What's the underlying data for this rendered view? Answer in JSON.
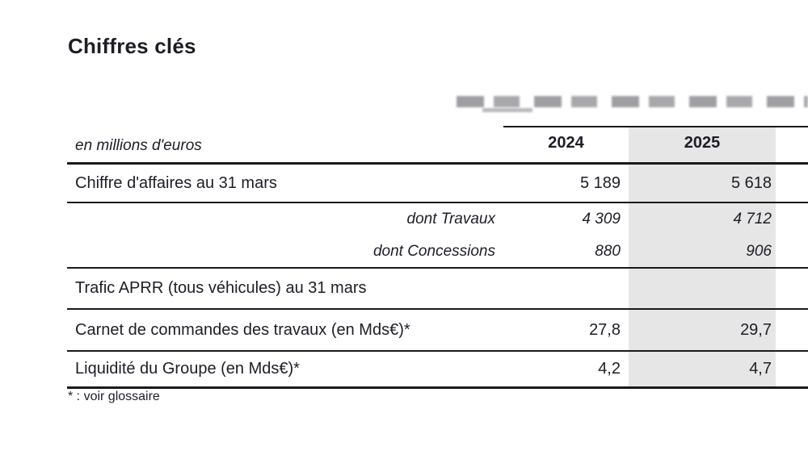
{
  "page": {
    "title": "Chiffres clés"
  },
  "table": {
    "unit_label": "en millions d'euros",
    "columns": [
      "2024",
      "2025"
    ],
    "rows": [
      {
        "label": "Chiffre d'affaires au 31 mars",
        "style": "normal",
        "values": [
          "5 189",
          "5 618"
        ]
      },
      {
        "label": "dont Travaux",
        "style": "sub",
        "values": [
          "4 309",
          "4 712"
        ]
      },
      {
        "label": "dont Concessions",
        "style": "sub",
        "values": [
          "880",
          "906"
        ]
      },
      {
        "label": "Trafic APRR (tous véhicules) au 31 mars",
        "style": "normal",
        "values": [
          "",
          ""
        ]
      },
      {
        "label": "Carnet de commandes des travaux (en Mds€)*",
        "style": "normal",
        "values": [
          "27,8",
          "29,7"
        ]
      },
      {
        "label": "Liquidité du Groupe (en Mds€)*",
        "style": "normal",
        "values": [
          "4,2",
          "4,7"
        ]
      }
    ],
    "footnote": "* : voir glossaire",
    "highlight_color": "#e6e6e6",
    "text_color": "#1d1d27",
    "line_color": "#1a1a1a"
  }
}
